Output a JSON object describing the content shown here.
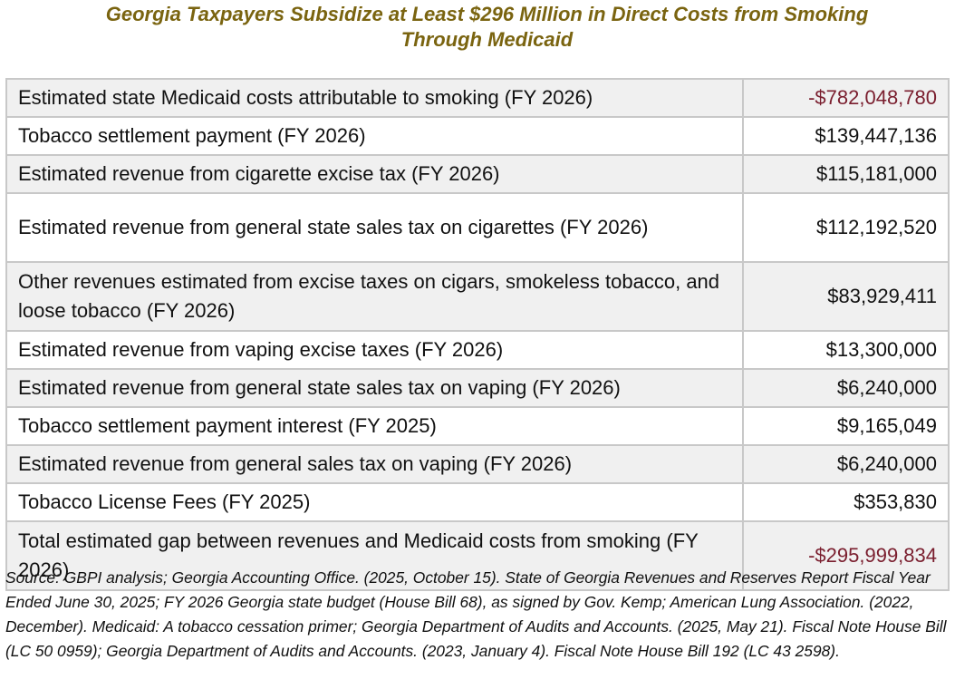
{
  "title": {
    "line1": "Georgia Taxpayers Subsidize at Least $296 Million in Direct Costs from Smoking",
    "line2": "Through Medicaid"
  },
  "rows": [
    {
      "label": "Estimated state Medicaid costs attributable to smoking (FY 2026)",
      "value": "-$782,048,780"
    },
    {
      "label": "Tobacco settlement payment (FY 2026)",
      "value": "$139,447,136"
    },
    {
      "label": "Estimated revenue from cigarette excise tax  (FY 2026)",
      "value": "$115,181,000"
    },
    {
      "label": "Estimated revenue from general state sales tax on cigarettes (FY 2026)",
      "value": "$112,192,520"
    },
    {
      "label": "Other revenues estimated from excise taxes on cigars, smokeless tobacco, and loose tobacco (FY 2026)",
      "value": "$83,929,411"
    },
    {
      "label": "Estimated revenue from vaping excise taxes (FY 2026)",
      "value": "$13,300,000"
    },
    {
      "label": "Estimated revenue from general state sales tax on vaping (FY 2026)",
      "value": "$6,240,000"
    },
    {
      "label": "Tobacco settlement payment interest (FY 2025)",
      "value": "$9,165,049"
    },
    {
      "label": "Estimated revenue from general sales tax on vaping (FY 2026)",
      "value": "$6,240,000"
    },
    {
      "label": "Tobacco License Fees (FY 2025)",
      "value": "$353,830"
    },
    {
      "label": "Total estimated gap between revenues and Medicaid costs from smoking (FY 2026)",
      "value": "-$295,999,834"
    }
  ],
  "source": "Source: GBPI analysis; Georgia Accounting Office. (2025, October 15). State of Georgia Revenues and Reserves Report Fiscal Year Ended June 30, 2025; FY 2026 Georgia state budget (House Bill 68), as signed by Gov. Kemp; American Lung Association. (2022, December). Medicaid: A tobacco cessation primer; Georgia Department of Audits and Accounts. (2025, May 21). Fiscal Note House Bill (LC 50 0959); Georgia Department of Audits and Accounts. (2023, January 4). Fiscal Note House Bill 192 (LC 43 2598).",
  "colors": {
    "title": "#7a6410",
    "negative": "#7a1e2e",
    "shaded_row": "#f0f0f0",
    "border": "#c8c8c8"
  }
}
